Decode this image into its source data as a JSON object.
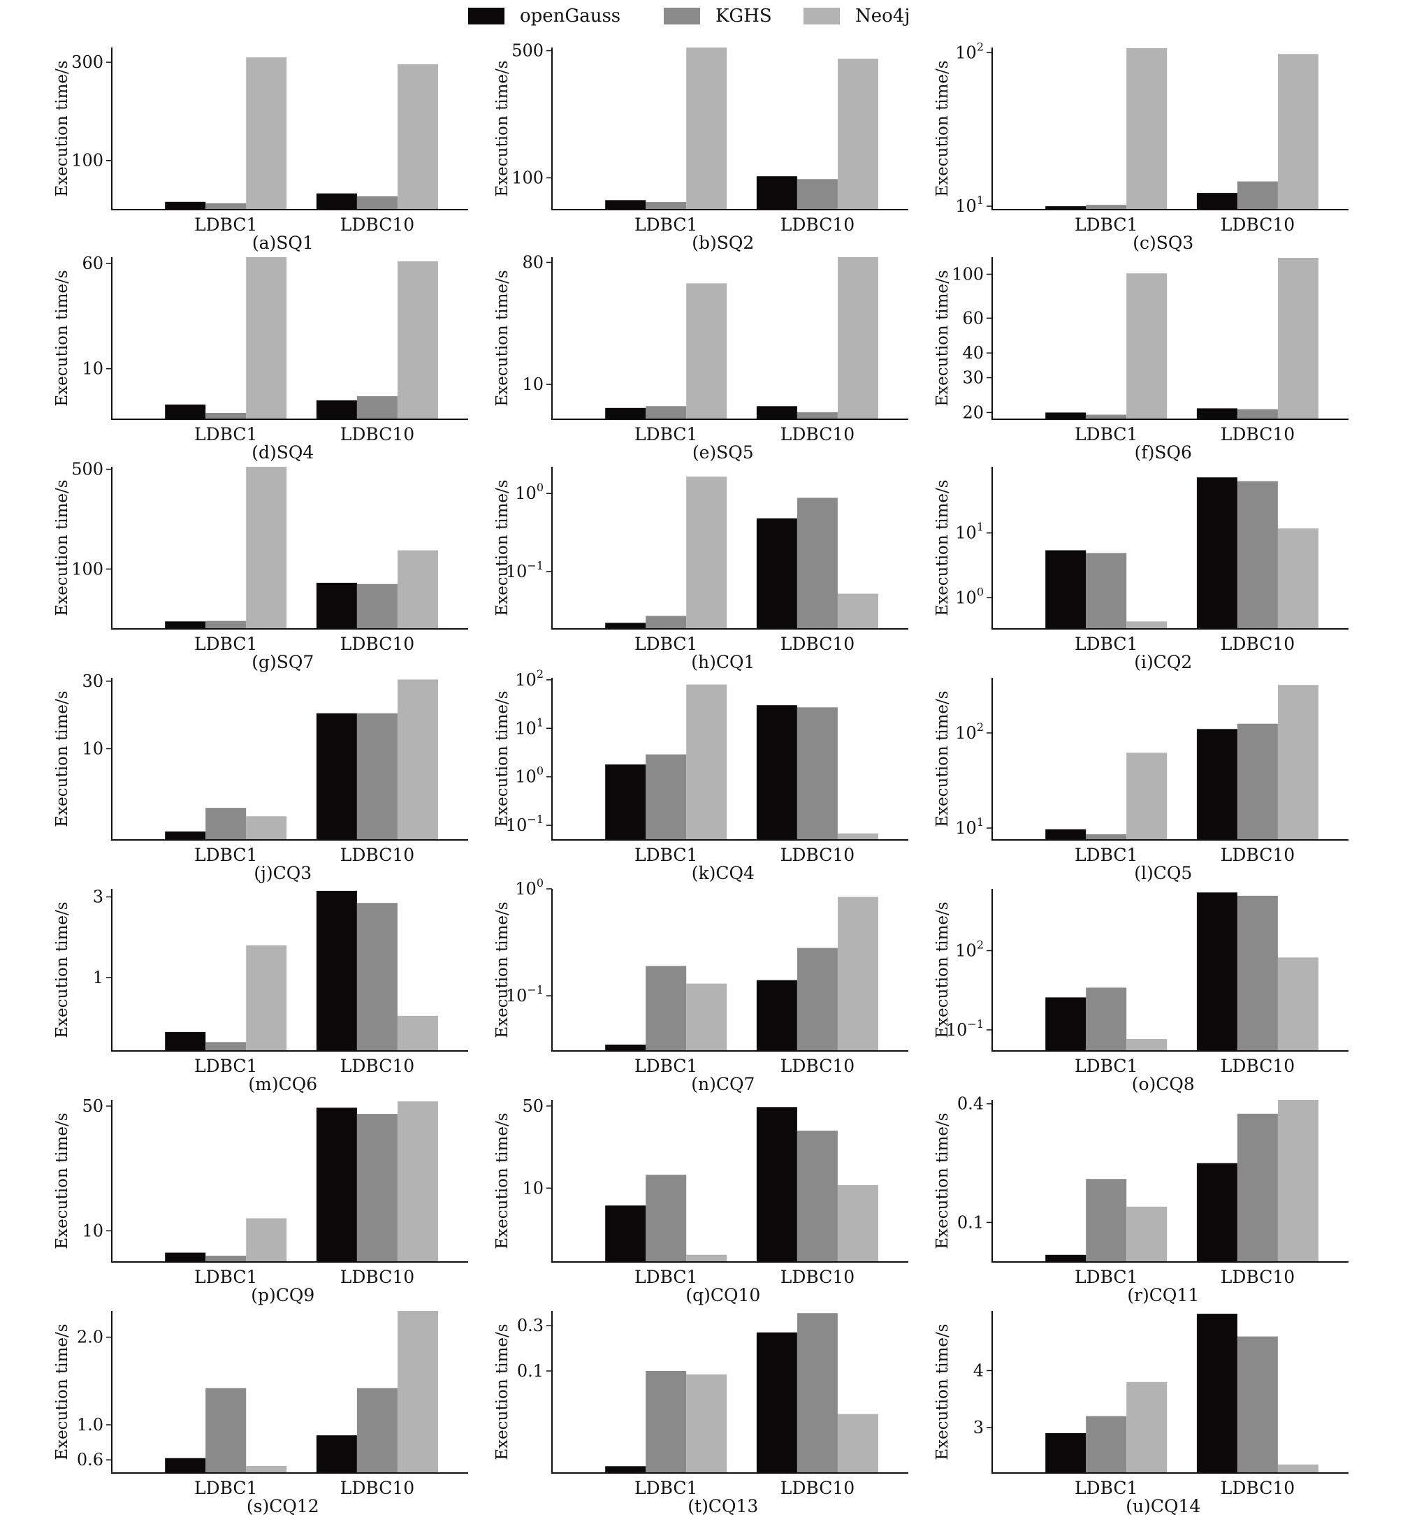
{
  "legend": [
    {
      "name": "openGauss",
      "color": "#0a0808"
    },
    {
      "name": "KGHS",
      "color": "#8a8a8a"
    },
    {
      "name": "Neo4j",
      "color": "#b3b3b3"
    }
  ],
  "colors": {
    "openGauss": "#0a0808",
    "KGHS": "#8a8a8a",
    "Neo4j": "#b3b3b3",
    "axis": "#111111"
  },
  "chart_data": [
    {
      "caption": "(a)SQ1",
      "type": "bar",
      "ylabel": "Execution time/s",
      "categories": [
        "LDBC1",
        "LDBC10"
      ],
      "scale": "linear",
      "ylim": [
        0,
        330
      ],
      "ticks": [
        {
          "v": 100,
          "label": "100"
        },
        {
          "v": 300,
          "label": "300"
        }
      ],
      "series": [
        {
          "name": "openGauss",
          "values": [
            16,
            33
          ]
        },
        {
          "name": "KGHS",
          "values": [
            13,
            27
          ]
        },
        {
          "name": "Neo4j",
          "values": [
            310,
            296
          ]
        }
      ]
    },
    {
      "caption": "(b)SQ2",
      "type": "bar",
      "ylabel": "Execution time/s",
      "categories": [
        "LDBC1",
        "LDBC10"
      ],
      "scale": "linear",
      "ylim": [
        0,
        510
      ],
      "ticks": [
        {
          "v": 100,
          "label": "100"
        },
        {
          "v": 500,
          "label": "500"
        }
      ],
      "series": [
        {
          "name": "openGauss",
          "values": [
            30,
            105
          ]
        },
        {
          "name": "KGHS",
          "values": [
            24,
            96
          ]
        },
        {
          "name": "Neo4j",
          "values": [
            510,
            475
          ]
        }
      ]
    },
    {
      "caption": "(c)SQ3",
      "type": "bar",
      "ylabel": "Execution time/s",
      "categories": [
        "LDBC1",
        "LDBC10"
      ],
      "scale": "log",
      "ylim": [
        9.5,
        108
      ],
      "ticks": [
        {
          "v": 10,
          "label": "10",
          "sup": "1"
        },
        {
          "v": 100,
          "label": "10",
          "sup": "2"
        }
      ],
      "series": [
        {
          "name": "openGauss",
          "values": [
            10,
            12.2
          ]
        },
        {
          "name": "KGHS",
          "values": [
            10.2,
            14.5
          ]
        },
        {
          "name": "Neo4j",
          "values": [
            107,
            98
          ]
        }
      ]
    },
    {
      "caption": "(d)SQ4",
      "type": "bar",
      "ylabel": "Execution time/s",
      "categories": [
        "LDBC1",
        "LDBC10"
      ],
      "scale": "linear",
      "ylim": [
        -14,
        63
      ],
      "ticks": [
        {
          "v": 10,
          "label": "10"
        },
        {
          "v": 60,
          "label": "60"
        }
      ],
      "series": [
        {
          "name": "openGauss",
          "values": [
            -7,
            -5
          ]
        },
        {
          "name": "KGHS",
          "values": [
            -11,
            -3
          ]
        },
        {
          "name": "Neo4j",
          "values": [
            64,
            61
          ]
        }
      ]
    },
    {
      "caption": "(e)SQ5",
      "type": "bar",
      "ylabel": "Execution time/s",
      "categories": [
        "LDBC1",
        "LDBC10"
      ],
      "scale": "linear",
      "ylim": [
        -10,
        83
      ],
      "ticks": [
        {
          "v": 10,
          "label": "10"
        },
        {
          "v": 80,
          "label": "80"
        }
      ],
      "series": [
        {
          "name": "openGauss",
          "values": [
            -3.5,
            -2.5
          ]
        },
        {
          "name": "KGHS",
          "values": [
            -2.5,
            -6
          ]
        },
        {
          "name": "Neo4j",
          "values": [
            68,
            83
          ]
        }
      ]
    },
    {
      "caption": "(f)SQ6",
      "type": "bar",
      "ylabel": "Execution time/s",
      "categories": [
        "LDBC1",
        "LDBC10"
      ],
      "scale": "log",
      "ylim": [
        18.5,
        122
      ],
      "ticks": [
        {
          "v": 20,
          "label": "20"
        },
        {
          "v": 30,
          "label": "30"
        },
        {
          "v": 40,
          "label": "40"
        },
        {
          "v": 60,
          "label": "60"
        },
        {
          "v": 100,
          "label": "100"
        }
      ],
      "series": [
        {
          "name": "openGauss",
          "values": [
            20,
            21
          ]
        },
        {
          "name": "KGHS",
          "values": [
            19.5,
            20.8
          ]
        },
        {
          "name": "Neo4j",
          "values": [
            101,
            121
          ]
        }
      ]
    },
    {
      "caption": "(g)SQ7",
      "type": "bar",
      "ylabel": "Execution time/s",
      "categories": [
        "LDBC1",
        "LDBC10"
      ],
      "scale": "linear",
      "ylim": [
        -140,
        510
      ],
      "ticks": [
        {
          "v": 100,
          "label": "100"
        },
        {
          "v": 500,
          "label": "500"
        }
      ],
      "series": [
        {
          "name": "openGauss",
          "values": [
            -110,
            45
          ]
        },
        {
          "name": "KGHS",
          "values": [
            -108,
            40
          ]
        },
        {
          "name": "Neo4j",
          "values": [
            510,
            175
          ]
        }
      ]
    },
    {
      "caption": "(h)CQ1",
      "type": "bar",
      "ylabel": "Execution time/s",
      "categories": [
        "LDBC1",
        "LDBC10"
      ],
      "scale": "log",
      "ylim": [
        0.0184,
        2.2
      ],
      "ticks": [
        {
          "v": 0.1,
          "label": "10",
          "sup": "−1"
        },
        {
          "v": 1,
          "label": "10",
          "sup": "0"
        }
      ],
      "series": [
        {
          "name": "openGauss",
          "values": [
            0.022,
            0.48
          ]
        },
        {
          "name": "KGHS",
          "values": [
            0.027,
            0.88
          ]
        },
        {
          "name": "Neo4j",
          "values": [
            1.65,
            0.052
          ]
        }
      ]
    },
    {
      "caption": "(i)CQ2",
      "type": "bar",
      "ylabel": "Execution time/s",
      "categories": [
        "LDBC1",
        "LDBC10"
      ],
      "scale": "log",
      "ylim": [
        0.33,
        105
      ],
      "ticks": [
        {
          "v": 1,
          "label": "10",
          "sup": "0"
        },
        {
          "v": 10,
          "label": "10",
          "sup": "1"
        }
      ],
      "series": [
        {
          "name": "openGauss",
          "values": [
            5.4,
            72
          ]
        },
        {
          "name": "KGHS",
          "values": [
            4.9,
            63
          ]
        },
        {
          "name": "Neo4j",
          "values": [
            0.43,
            11.7
          ]
        }
      ]
    },
    {
      "caption": "(j)CQ3",
      "type": "bar",
      "ylabel": "Execution time/s",
      "categories": [
        "LDBC1",
        "LDBC10"
      ],
      "scale": "linear",
      "ylim": [
        -17,
        31
      ],
      "ticks": [
        {
          "v": 10,
          "label": "10"
        },
        {
          "v": 30,
          "label": "30"
        }
      ],
      "series": [
        {
          "name": "openGauss",
          "values": [
            -14.5,
            20.5
          ]
        },
        {
          "name": "KGHS",
          "values": [
            -7.5,
            20.5
          ]
        },
        {
          "name": "Neo4j",
          "values": [
            -10,
            30.5
          ]
        }
      ]
    },
    {
      "caption": "(k)CQ4",
      "type": "bar",
      "ylabel": "Execution time/s",
      "categories": [
        "LDBC1",
        "LDBC10"
      ],
      "scale": "log",
      "ylim": [
        0.05,
        110
      ],
      "ticks": [
        {
          "v": 0.1,
          "label": "10",
          "sup": "−1"
        },
        {
          "v": 1,
          "label": "10",
          "sup": "0"
        },
        {
          "v": 10,
          "label": "10",
          "sup": "1"
        },
        {
          "v": 100,
          "label": "10",
          "sup": "2"
        }
      ],
      "series": [
        {
          "name": "openGauss",
          "values": [
            1.8,
            30
          ]
        },
        {
          "name": "KGHS",
          "values": [
            2.9,
            27
          ]
        },
        {
          "name": "Neo4j",
          "values": [
            80,
            0.068
          ]
        }
      ]
    },
    {
      "caption": "(l)CQ5",
      "type": "bar",
      "ylabel": "Execution time/s",
      "categories": [
        "LDBC1",
        "LDBC10"
      ],
      "scale": "log",
      "ylim": [
        7.5,
        380
      ],
      "ticks": [
        {
          "v": 10,
          "label": "10",
          "sup": "1"
        },
        {
          "v": 100,
          "label": "10",
          "sup": "2"
        }
      ],
      "series": [
        {
          "name": "openGauss",
          "values": [
            9.7,
            110
          ]
        },
        {
          "name": "KGHS",
          "values": [
            8.6,
            125
          ]
        },
        {
          "name": "Neo4j",
          "values": [
            62,
            320
          ]
        }
      ]
    },
    {
      "caption": "(m)CQ6",
      "type": "bar",
      "ylabel": "Execution time/s",
      "categories": [
        "LDBC1",
        "LDBC10"
      ],
      "scale": "linear",
      "ylim": [
        -0.82,
        3.2
      ],
      "ticks": [
        {
          "v": 1,
          "label": "1"
        },
        {
          "v": 3,
          "label": "3"
        }
      ],
      "series": [
        {
          "name": "openGauss",
          "values": [
            -0.35,
            3.15
          ]
        },
        {
          "name": "KGHS",
          "values": [
            -0.6,
            2.85
          ]
        },
        {
          "name": "Neo4j",
          "values": [
            1.8,
            0.05
          ]
        }
      ]
    },
    {
      "caption": "(n)CQ7",
      "type": "bar",
      "ylabel": "Execution time/s",
      "categories": [
        "LDBC1",
        "LDBC10"
      ],
      "scale": "log",
      "ylim": [
        0.0305,
        1
      ],
      "ticks": [
        {
          "v": 0.1,
          "label": "10",
          "sup": "−1"
        },
        {
          "v": 1,
          "label": "10",
          "sup": "0"
        }
      ],
      "series": [
        {
          "name": "openGauss",
          "values": [
            0.035,
            0.14
          ]
        },
        {
          "name": "KGHS",
          "values": [
            0.19,
            0.28
          ]
        },
        {
          "name": "Neo4j",
          "values": [
            0.13,
            0.84
          ]
        }
      ]
    },
    {
      "caption": "(o)CQ8",
      "type": "bar",
      "ylabel": "Execution time/s",
      "categories": [
        "LDBC1",
        "LDBC10"
      ],
      "scale": "log",
      "ylim": [
        0.016,
        22000
      ],
      "ticks": [
        {
          "v": 0.1,
          "label": "10",
          "sup": "−1"
        },
        {
          "v": 100,
          "label": "10",
          "sup": "2"
        }
      ],
      "series": [
        {
          "name": "openGauss",
          "values": [
            1.7,
            16000
          ]
        },
        {
          "name": "KGHS",
          "values": [
            4,
            12000
          ]
        },
        {
          "name": "Neo4j",
          "values": [
            0.045,
            55
          ]
        }
      ]
    },
    {
      "caption": "(p)CQ9",
      "type": "bar",
      "ylabel": "Execution time/s",
      "categories": [
        "LDBC1",
        "LDBC10"
      ],
      "scale": "linear",
      "ylim": [
        0,
        52
      ],
      "ticks": [
        {
          "v": 10,
          "label": "10"
        },
        {
          "v": 50,
          "label": "50"
        }
      ],
      "series": [
        {
          "name": "openGauss",
          "values": [
            3,
            49.5
          ]
        },
        {
          "name": "KGHS",
          "values": [
            2,
            47.5
          ]
        },
        {
          "name": "Neo4j",
          "values": [
            14,
            51.5
          ]
        }
      ]
    },
    {
      "caption": "(q)CQ10",
      "type": "bar",
      "ylabel": "Execution time/s",
      "categories": [
        "LDBC1",
        "LDBC10"
      ],
      "scale": "linear",
      "ylim": [
        -26,
        53
      ],
      "ticks": [
        {
          "v": 10,
          "label": "10"
        },
        {
          "v": 50,
          "label": "50"
        }
      ],
      "series": [
        {
          "name": "openGauss",
          "values": [
            1.5,
            49.5
          ]
        },
        {
          "name": "KGHS",
          "values": [
            16.5,
            38
          ]
        },
        {
          "name": "Neo4j",
          "values": [
            -22.5,
            11.5
          ]
        }
      ]
    },
    {
      "caption": "(r)CQ11",
      "type": "bar",
      "ylabel": "Execution time/s",
      "categories": [
        "LDBC1",
        "LDBC10"
      ],
      "scale": "linear",
      "ylim": [
        0,
        0.41
      ],
      "ticks": [
        {
          "v": 0.1,
          "label": "0.1"
        },
        {
          "v": 0.4,
          "label": "0.4"
        }
      ],
      "series": [
        {
          "name": "openGauss",
          "values": [
            0.018,
            0.25
          ]
        },
        {
          "name": "KGHS",
          "values": [
            0.21,
            0.375
          ]
        },
        {
          "name": "Neo4j",
          "values": [
            0.14,
            0.41
          ]
        }
      ]
    },
    {
      "caption": "(s)CQ12",
      "type": "bar",
      "ylabel": "Execution time/s",
      "categories": [
        "LDBC1",
        "LDBC10"
      ],
      "scale": "linear",
      "ylim": [
        0.45,
        2.3
      ],
      "ticks": [
        {
          "v": 0.6,
          "label": "0.6"
        },
        {
          "v": 1,
          "label": "1.0"
        },
        {
          "v": 2,
          "label": "2.0"
        }
      ],
      "series": [
        {
          "name": "openGauss",
          "values": [
            0.62,
            0.88
          ]
        },
        {
          "name": "KGHS",
          "values": [
            1.42,
            1.42
          ]
        },
        {
          "name": "Neo4j",
          "values": [
            0.53,
            2.3
          ]
        }
      ]
    },
    {
      "caption": "(t)CQ13",
      "type": "bar",
      "ylabel": "Execution time/s",
      "categories": [
        "LDBC1",
        "LDBC10"
      ],
      "scale": "linear",
      "ylim": [
        -0.35,
        0.365
      ],
      "ticks": [
        {
          "v": 0.1,
          "label": "0.1"
        },
        {
          "v": 0.3,
          "label": "0.3"
        }
      ],
      "series": [
        {
          "name": "openGauss",
          "values": [
            -0.32,
            0.27
          ]
        },
        {
          "name": "KGHS",
          "values": [
            0.1,
            0.355
          ]
        },
        {
          "name": "Neo4j",
          "values": [
            0.085,
            -0.09
          ]
        }
      ]
    },
    {
      "caption": "(u)CQ14",
      "type": "bar",
      "ylabel": "Execution time/s",
      "categories": [
        "LDBC1",
        "LDBC10"
      ],
      "scale": "linear",
      "ylim": [
        2.2,
        5.05
      ],
      "ticks": [
        {
          "v": 3,
          "label": "3"
        },
        {
          "v": 4,
          "label": "4"
        }
      ],
      "series": [
        {
          "name": "openGauss",
          "values": [
            2.9,
            5
          ]
        },
        {
          "name": "KGHS",
          "values": [
            3.2,
            4.6
          ]
        },
        {
          "name": "Neo4j",
          "values": [
            3.8,
            2.35
          ]
        }
      ]
    }
  ]
}
